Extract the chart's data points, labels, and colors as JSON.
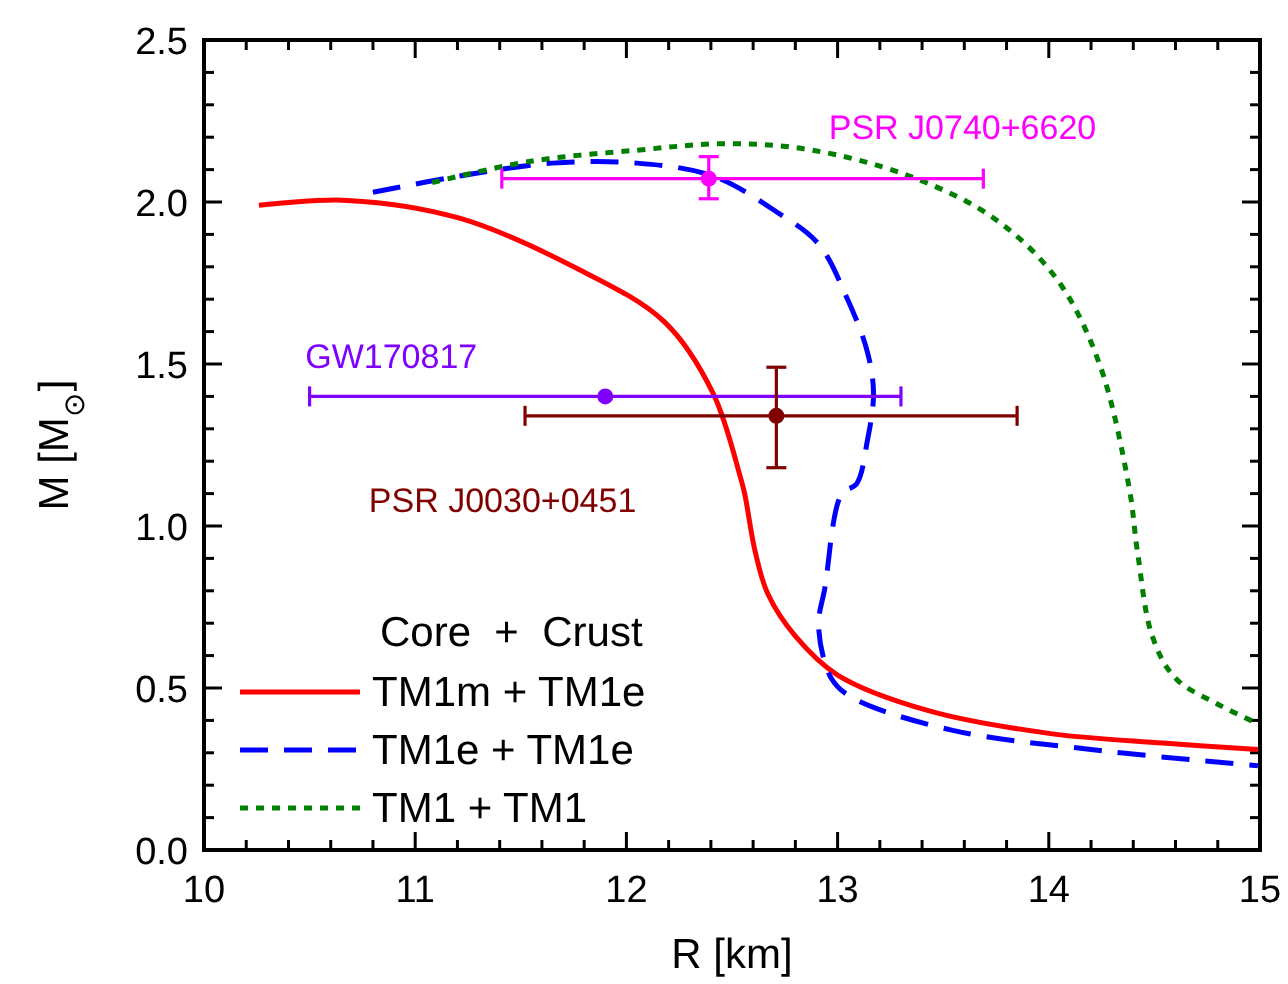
{
  "chart_data": {
    "type": "line",
    "xlabel": "R [km]",
    "ylabel": "M [M$_{⊙}$]",
    "legend_title": "Core  +  Crust",
    "legend": "bottom left",
    "xlim": [
      10,
      15
    ],
    "ylim": [
      0,
      2.5
    ],
    "xticks": [
      10,
      {
        "value": 10.2,
        "label": null
      },
      {
        "value": 10.4,
        "label": null
      },
      {
        "value": 10.6,
        "label": null
      },
      {
        "value": 10.8,
        "label": null
      },
      11,
      {
        "value": 11.2,
        "label": null
      },
      {
        "value": 11.4,
        "label": null
      },
      {
        "value": 11.6,
        "label": null
      },
      {
        "value": 11.8,
        "label": null
      },
      12,
      {
        "value": 12.2,
        "label": null
      },
      {
        "value": 12.4,
        "label": null
      },
      {
        "value": 12.6,
        "label": null
      },
      {
        "value": 12.8,
        "label": null
      },
      13,
      {
        "value": 13.2,
        "label": null
      },
      {
        "value": 13.4,
        "label": null
      },
      {
        "value": 13.6,
        "label": null
      },
      {
        "value": 13.8,
        "label": null
      },
      14,
      {
        "value": 14.2,
        "label": null
      },
      {
        "value": 14.4,
        "label": null
      },
      {
        "value": 14.6,
        "label": null
      },
      {
        "value": 14.8,
        "label": null
      },
      15
    ],
    "yticks": [
      {
        "value": 0,
        "label": "0.0"
      },
      {
        "value": 0.1,
        "label": null
      },
      {
        "value": 0.2,
        "label": null
      },
      {
        "value": 0.3,
        "label": null
      },
      {
        "value": 0.4,
        "label": null
      },
      0.5,
      {
        "value": 0.6,
        "label": null
      },
      {
        "value": 0.7,
        "label": null
      },
      {
        "value": 0.8,
        "label": null
      },
      {
        "value": 0.9,
        "label": null
      },
      {
        "value": 1,
        "label": "1.0"
      },
      {
        "value": 1.1,
        "label": null
      },
      {
        "value": 1.2,
        "label": null
      },
      {
        "value": 1.3,
        "label": null
      },
      {
        "value": 1.4,
        "label": null
      },
      1.5,
      {
        "value": 1.6,
        "label": null
      },
      {
        "value": 1.7,
        "label": null
      },
      {
        "value": 1.8,
        "label": null
      },
      {
        "value": 1.9,
        "label": null
      },
      {
        "value": 2,
        "label": "2.0"
      },
      {
        "value": 2.1,
        "label": null
      },
      {
        "value": 2.2,
        "label": null
      },
      {
        "value": 2.3,
        "label": null
      },
      {
        "value": 2.4,
        "label": null
      },
      2.5
    ],
    "series": [
      {
        "name": "TM1m + TM1e",
        "color": "#ff0000",
        "line_style": "solid",
        "marker": "none",
        "x": [
          10.26,
          10.68,
          11.21,
          11.75,
          12.18,
          12.41,
          12.54,
          12.56,
          12.61,
          12.67,
          12.8,
          13.0,
          13.43,
          14.0,
          14.54,
          14.99
        ],
        "values": [
          1.99,
          2.005,
          1.95,
          1.8,
          1.63,
          1.41,
          1.15,
          1.1,
          0.92,
          0.79,
          0.66,
          0.54,
          0.43,
          0.36,
          0.33,
          0.31
        ]
      },
      {
        "name": "TM1e + TM1e",
        "color": "#0000ff",
        "line_style": "dashed",
        "marker": "none",
        "x": [
          10.8,
          11.21,
          11.65,
          12.05,
          12.41,
          12.71,
          12.91,
          13.04,
          13.14,
          13.17,
          13.14,
          13.09,
          13.02,
          12.94,
          12.91,
          12.97,
          13.07,
          13.54,
          14.2,
          14.99
        ],
        "values": [
          2.03,
          2.08,
          2.12,
          2.12,
          2.08,
          1.97,
          1.87,
          1.71,
          1.54,
          1.41,
          1.26,
          1.13,
          1.1,
          0.81,
          0.69,
          0.53,
          0.47,
          0.37,
          0.31,
          0.26
        ]
      },
      {
        "name": "TM1 + TM1",
        "color": "#007f00",
        "line_style": "dotted",
        "marker": "none",
        "x": [
          11.08,
          11.54,
          12.05,
          12.48,
          12.88,
          13.34,
          13.74,
          14.04,
          14.24,
          14.38,
          14.42,
          14.49,
          14.6,
          14.8,
          14.99
        ],
        "values": [
          2.06,
          2.125,
          2.16,
          2.18,
          2.16,
          2.08,
          1.95,
          1.76,
          1.5,
          1.12,
          0.92,
          0.66,
          0.53,
          0.45,
          0.39
        ]
      },
      {
        "name": "PSR J0740+6620",
        "type": "scatter",
        "marker": "circle",
        "color": "#ff00ff",
        "x": [
          12.39
        ],
        "values": [
          2.072
        ],
        "errors": [
          [
            2.01,
            2.14
          ]
        ],
        "xerrors": [
          [
            11.41,
            13.69
          ]
        ]
      },
      {
        "name": "GW170817",
        "type": "scatter",
        "marker": "circle",
        "color": "#8000ff",
        "x": [
          11.9
        ],
        "values": [
          1.4
        ],
        "xerrors": [
          [
            10.5,
            13.3
          ]
        ]
      },
      {
        "name": "PSR J0030+0451",
        "type": "scatter",
        "marker": "circle",
        "color": "#800000",
        "x": [
          12.71
        ],
        "values": [
          1.34
        ],
        "errors": [
          [
            1.18,
            1.49
          ]
        ],
        "xerrors": [
          [
            11.52,
            13.85
          ]
        ]
      }
    ]
  }
}
